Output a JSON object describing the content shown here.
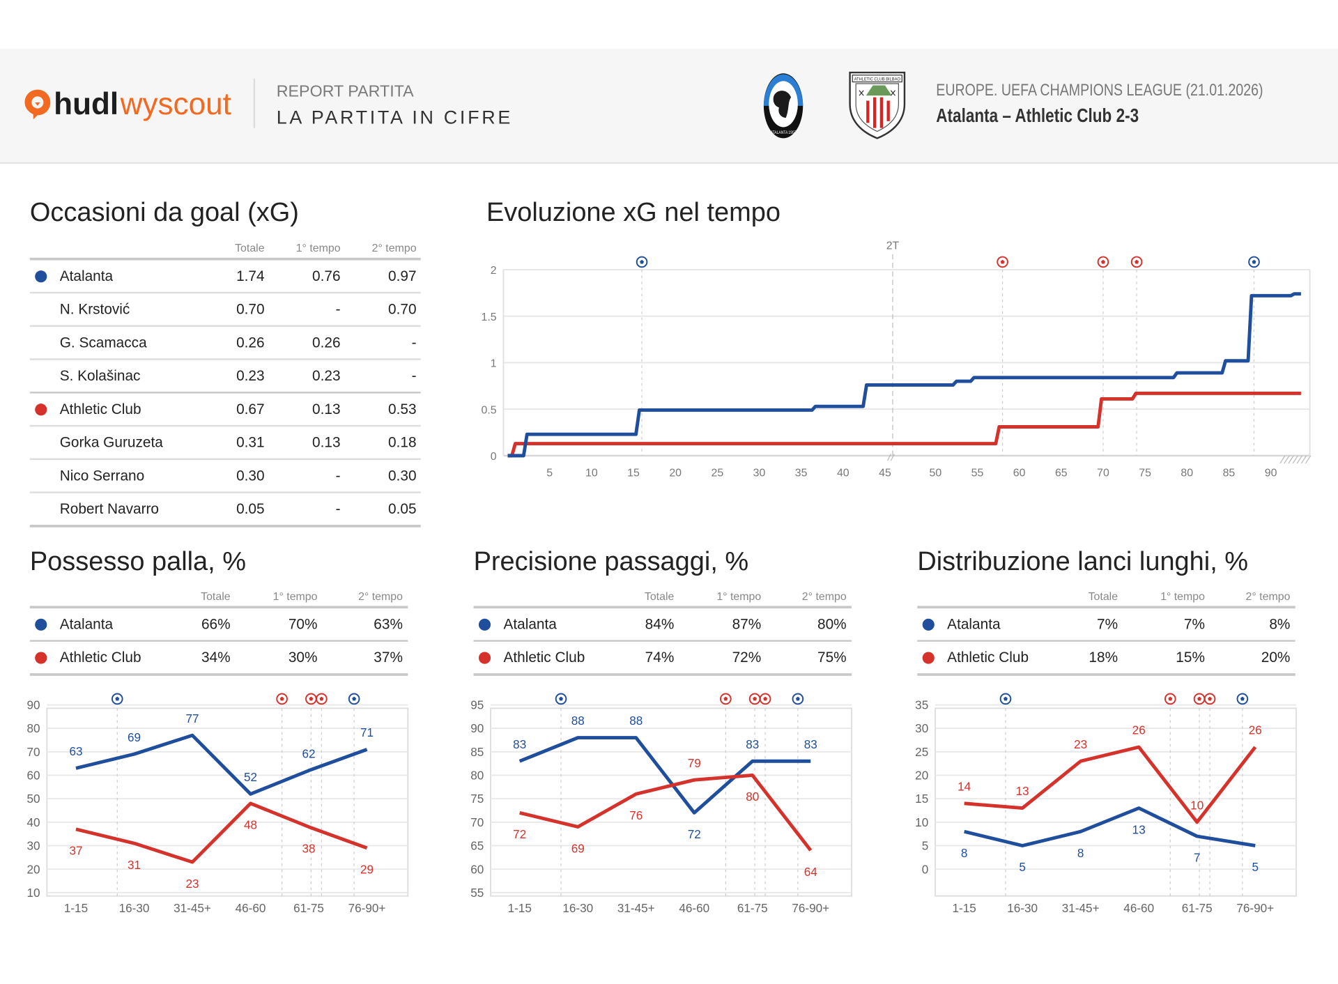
{
  "header": {
    "logo_part1": "hudl",
    "logo_part2": "wyscout",
    "report_label": "REPORT PARTITA",
    "report_title": "LA PARTITA IN CIFRE",
    "competition": "EUROPE. UEFA CHAMPIONS LEAGUE (21.01.2026)",
    "match": "Atalanta – Athletic Club 2-3",
    "home_crest_text": "ATALANTA 1907",
    "away_crest_text": "ATHLETIC CLUB BILBAO"
  },
  "colors": {
    "atalanta": "#1f4e9c",
    "athletic": "#d5322b",
    "brand": "#f26a21"
  },
  "xg_table": {
    "title": "Occasioni da goal (xG)",
    "columns": [
      "Totale",
      "1° tempo",
      "2° tempo"
    ],
    "rows": [
      {
        "name": "Atalanta",
        "team": "atalanta",
        "values": [
          "1.74",
          "0.76",
          "0.97"
        ]
      },
      {
        "name": "N. Krstović",
        "values": [
          "0.70",
          "-",
          "0.70"
        ]
      },
      {
        "name": "G. Scamacca",
        "values": [
          "0.26",
          "0.26",
          "-"
        ]
      },
      {
        "name": "S. Kolašinac",
        "values": [
          "0.23",
          "0.23",
          "-"
        ]
      },
      {
        "name": "Athletic Club",
        "team": "athletic",
        "values": [
          "0.67",
          "0.13",
          "0.53"
        ]
      },
      {
        "name": "Gorka Guruzeta",
        "values": [
          "0.31",
          "0.13",
          "0.18"
        ]
      },
      {
        "name": "Nico Serrano",
        "values": [
          "0.30",
          "-",
          "0.30"
        ]
      },
      {
        "name": "Robert Navarro",
        "values": [
          "0.05",
          "-",
          "0.05"
        ]
      }
    ]
  },
  "small_tables": [
    {
      "title": "Possesso palla, %",
      "columns": [
        "Totale",
        "1° tempo",
        "2° tempo"
      ],
      "rows": [
        {
          "name": "Atalanta",
          "team": "atalanta",
          "values": [
            "66%",
            "70%",
            "63%"
          ]
        },
        {
          "name": "Athletic Club",
          "team": "athletic",
          "values": [
            "34%",
            "30%",
            "37%"
          ]
        }
      ]
    },
    {
      "title": "Precisione passaggi, %",
      "columns": [
        "Totale",
        "1° tempo",
        "2° tempo"
      ],
      "rows": [
        {
          "name": "Atalanta",
          "team": "atalanta",
          "values": [
            "84%",
            "87%",
            "80%"
          ]
        },
        {
          "name": "Athletic Club",
          "team": "athletic",
          "values": [
            "74%",
            "72%",
            "75%"
          ]
        }
      ]
    },
    {
      "title": "Distribuzione lanci lunghi, %",
      "columns": [
        "Totale",
        "1° tempo",
        "2° tempo"
      ],
      "rows": [
        {
          "name": "Atalanta",
          "team": "atalanta",
          "values": [
            "7%",
            "7%",
            "8%"
          ]
        },
        {
          "name": "Athletic Club",
          "team": "athletic",
          "values": [
            "18%",
            "15%",
            "20%"
          ]
        }
      ]
    }
  ],
  "goals": [
    {
      "minute": 16,
      "team": "atalanta"
    },
    {
      "minute": 58,
      "team": "athletic"
    },
    {
      "minute": 70,
      "team": "athletic"
    },
    {
      "minute": 74,
      "team": "athletic"
    },
    {
      "minute": 88,
      "team": "atalanta"
    }
  ],
  "chart_data": [
    {
      "type": "line",
      "title": "Evoluzione xG nel tempo",
      "half_marker": "2T",
      "xlim": [
        0,
        94
      ],
      "ylim": [
        0,
        2
      ],
      "x_ticks": [
        5,
        10,
        15,
        20,
        25,
        30,
        35,
        40,
        45,
        50,
        55,
        60,
        65,
        70,
        75,
        80,
        85,
        90
      ],
      "y_ticks": [
        "0",
        "0.5",
        "1",
        "1.5",
        "2"
      ],
      "grid": true,
      "series": [
        {
          "team": "atalanta",
          "points": [
            [
              0,
              0
            ],
            [
              2.2,
              0.23
            ],
            [
              15.6,
              0.49
            ],
            [
              36.6,
              0.53
            ],
            [
              42.7,
              0.76
            ],
            [
              52.4,
              0.8
            ],
            [
              54.5,
              0.84
            ],
            [
              78.7,
              0.89
            ],
            [
              84.5,
              1.02
            ],
            [
              87.6,
              1.72
            ],
            [
              92.7,
              1.74
            ],
            [
              93.5,
              1.74
            ]
          ]
        },
        {
          "team": "athletic",
          "points": [
            [
              0,
              0
            ],
            [
              0.8,
              0.13
            ],
            [
              57.5,
              0.31
            ],
            [
              69.7,
              0.61
            ],
            [
              73.8,
              0.67
            ],
            [
              93.5,
              0.67
            ]
          ]
        }
      ]
    },
    {
      "type": "line",
      "title": "Possesso palla, %",
      "categories": [
        "1-15",
        "16-30",
        "31-45+",
        "46-60",
        "61-75",
        "76-90+"
      ],
      "ylim": [
        10,
        90
      ],
      "y_ticks": [
        10,
        20,
        30,
        40,
        50,
        60,
        70,
        80,
        90
      ],
      "grid": true,
      "series": [
        {
          "team": "atalanta",
          "values": [
            63,
            69,
            77,
            52,
            62,
            71
          ]
        },
        {
          "team": "athletic",
          "values": [
            37,
            31,
            23,
            48,
            38,
            29
          ]
        }
      ]
    },
    {
      "type": "line",
      "title": "Precisione passaggi, %",
      "categories": [
        "1-15",
        "16-30",
        "31-45+",
        "46-60",
        "61-75",
        "76-90+"
      ],
      "ylim": [
        55,
        95
      ],
      "y_ticks": [
        55,
        60,
        65,
        70,
        75,
        80,
        85,
        90,
        95
      ],
      "grid": true,
      "series": [
        {
          "team": "atalanta",
          "values": [
            83,
            88,
            88,
            72,
            83,
            83
          ]
        },
        {
          "team": "athletic",
          "values": [
            72,
            69,
            76,
            79,
            80,
            64
          ]
        }
      ]
    },
    {
      "type": "line",
      "title": "Distribuzione lanci lunghi, %",
      "categories": [
        "1-15",
        "16-30",
        "31-45+",
        "46-60",
        "61-75",
        "76-90+"
      ],
      "ylim": [
        -5,
        35
      ],
      "y_ticks": [
        0,
        5,
        10,
        15,
        20,
        25,
        30,
        35
      ],
      "grid": true,
      "series": [
        {
          "team": "atalanta",
          "values": [
            8,
            5,
            8,
            13,
            7,
            5
          ]
        },
        {
          "team": "athletic",
          "values": [
            14,
            13,
            23,
            26,
            10,
            26
          ]
        }
      ]
    }
  ]
}
